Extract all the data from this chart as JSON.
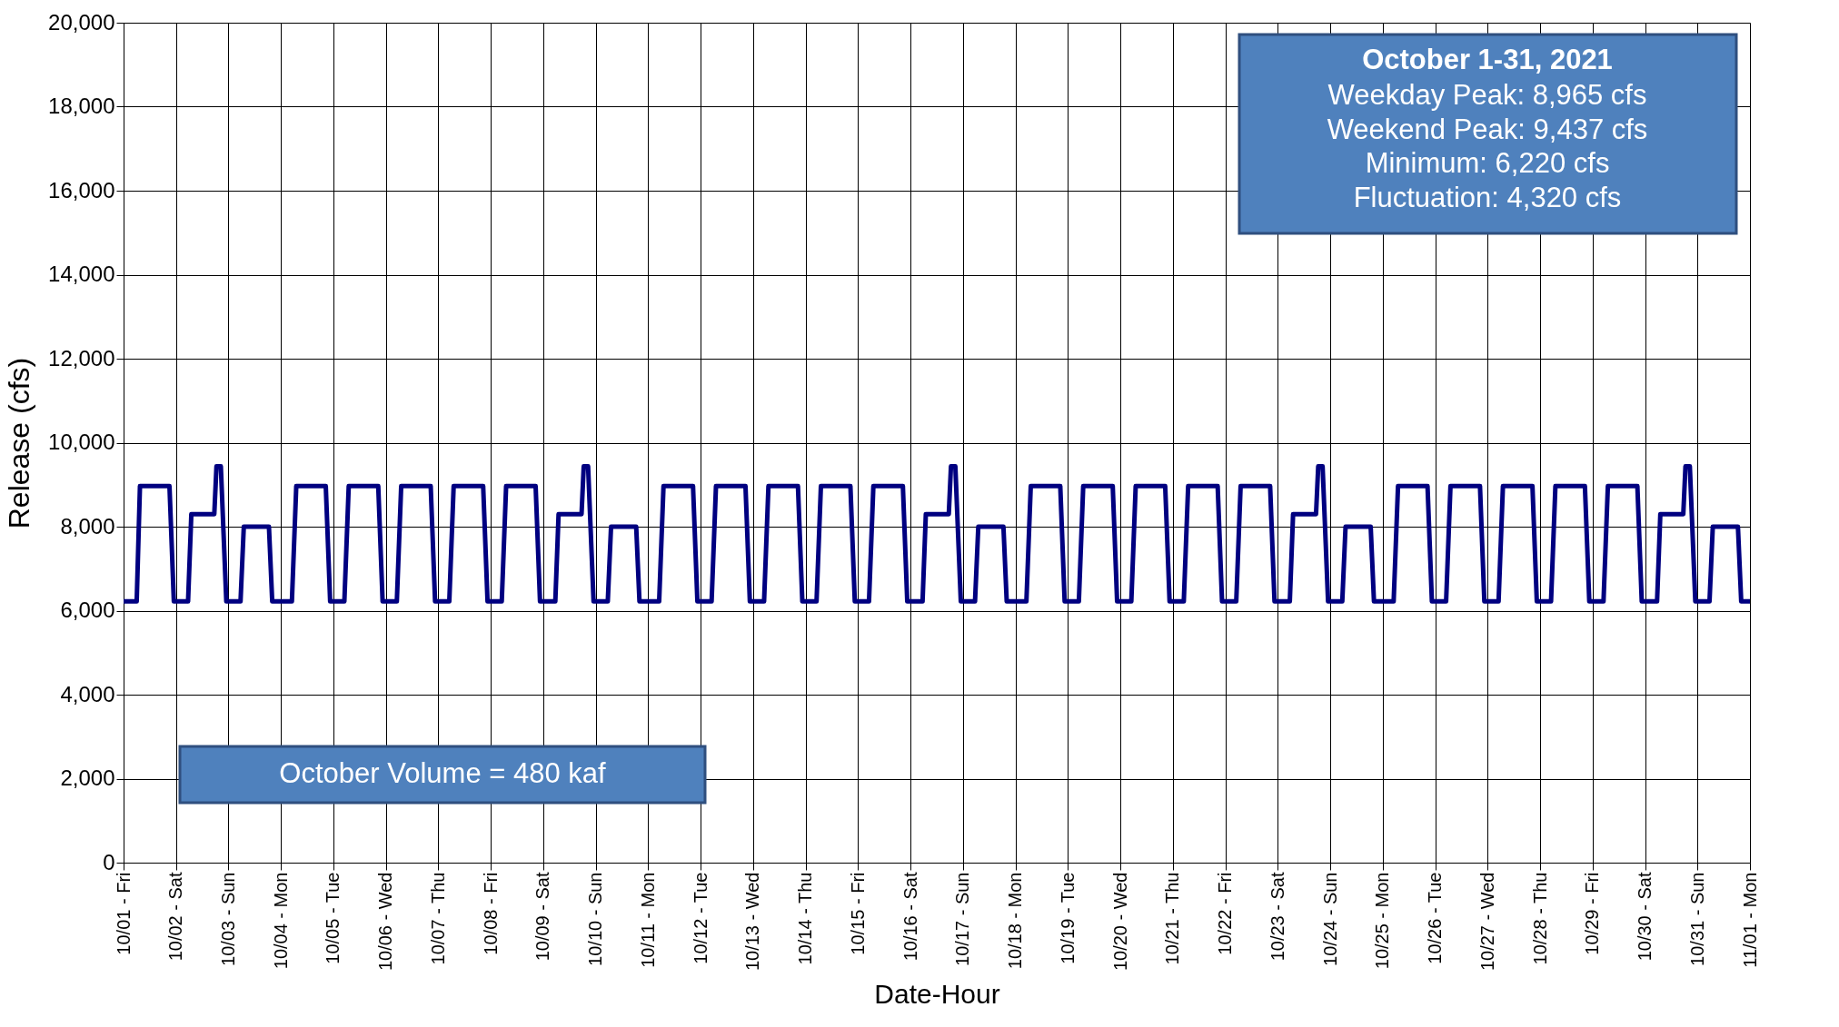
{
  "chart_data": {
    "type": "line",
    "xlabel": "Date-Hour",
    "ylabel": "Release (cfs)",
    "annotations": [
      "October 1-31, 2021",
      "Weekday Peak: 8,965 cfs",
      "Weekend Peak: 9,437 cfs",
      "Minimum: 6,220 cfs",
      "Fluctuation: 4,320 cfs",
      "October Volume = 480 kaf"
    ],
    "xlim": [
      "2021-10-01",
      "2021-11-01"
    ],
    "xticks": [
      {
        "value": "2021-10-01",
        "label": "10/01 - Fri"
      },
      {
        "value": "2021-10-02",
        "label": "10/02 - Sat"
      },
      {
        "value": "2021-10-03",
        "label": "10/03 - Sun"
      },
      {
        "value": "2021-10-04",
        "label": "10/04 - Mon"
      },
      {
        "value": "2021-10-05",
        "label": "10/05 - Tue"
      },
      {
        "value": "2021-10-06",
        "label": "10/06 - Wed"
      },
      {
        "value": "2021-10-07",
        "label": "10/07 - Thu"
      },
      {
        "value": "2021-10-08",
        "label": "10/08 - Fri"
      },
      {
        "value": "2021-10-09",
        "label": "10/09 - Sat"
      },
      {
        "value": "2021-10-10",
        "label": "10/10 - Sun"
      },
      {
        "value": "2021-10-11",
        "label": "10/11 - Mon"
      },
      {
        "value": "2021-10-12",
        "label": "10/12 - Tue"
      },
      {
        "value": "2021-10-13",
        "label": "10/13 - Wed"
      },
      {
        "value": "2021-10-14",
        "label": "10/14 - Thu"
      },
      {
        "value": "2021-10-15",
        "label": "10/15 - Fri"
      },
      {
        "value": "2021-10-16",
        "label": "10/16 - Sat"
      },
      {
        "value": "2021-10-17",
        "label": "10/17 - Sun"
      },
      {
        "value": "2021-10-18",
        "label": "10/18 - Mon"
      },
      {
        "value": "2021-10-19",
        "label": "10/19 - Tue"
      },
      {
        "value": "2021-10-20",
        "label": "10/20 - Wed"
      },
      {
        "value": "2021-10-21",
        "label": "10/21 - Thu"
      },
      {
        "value": "2021-10-22",
        "label": "10/22 - Fri"
      },
      {
        "value": "2021-10-23",
        "label": "10/23 - Sat"
      },
      {
        "value": "2021-10-24",
        "label": "10/24 - Sun"
      },
      {
        "value": "2021-10-25",
        "label": "10/25 - Mon"
      },
      {
        "value": "2021-10-26",
        "label": "10/26 - Tue"
      },
      {
        "value": "2021-10-27",
        "label": "10/27 - Wed"
      },
      {
        "value": "2021-10-28",
        "label": "10/28 - Thu"
      },
      {
        "value": "2021-10-29",
        "label": "10/29 - Fri"
      },
      {
        "value": "2021-10-30",
        "label": "10/30 - Sat"
      },
      {
        "value": "2021-10-31",
        "label": "10/31 - Sun"
      },
      {
        "value": "2021-11-01",
        "label": "11/01 - Mon"
      }
    ],
    "ylim": [
      0,
      20000
    ],
    "yticks": [
      {
        "value": 0,
        "label": "0"
      },
      {
        "value": 2000,
        "label": "2,000"
      },
      {
        "value": 4000,
        "label": "4,000"
      },
      {
        "value": 6000,
        "label": "6,000"
      },
      {
        "value": 8000,
        "label": "8,000"
      },
      {
        "value": 10000,
        "label": "10,000"
      },
      {
        "value": 12000,
        "label": "12,000"
      },
      {
        "value": 14000,
        "label": "14,000"
      },
      {
        "value": 16000,
        "label": "16,000"
      },
      {
        "value": 18000,
        "label": "18,000"
      },
      {
        "value": 20000,
        "label": "20,000"
      }
    ],
    "grid": true,
    "marker": "none",
    "line_style": "solid",
    "series": [
      {
        "color": "#000080",
        "x": [
          "2021-10-01T00:00",
          "2021-10-01T06:00",
          "2021-10-01T07:30",
          "2021-10-01T21:00",
          "2021-10-01T23:00",
          "2021-10-02T05:30",
          "2021-10-02T07:00",
          "2021-10-02T17:30",
          "2021-10-02T18:30",
          "2021-10-02T20:30",
          "2021-10-02T23:00",
          "2021-10-03T05:30",
          "2021-10-03T07:00",
          "2021-10-03T18:30",
          "2021-10-03T20:00",
          "2021-10-04T05:00",
          "2021-10-04T07:00",
          "2021-10-04T20:30",
          "2021-10-04T22:30",
          "2021-10-05T05:00",
          "2021-10-05T07:00",
          "2021-10-05T20:30",
          "2021-10-05T22:30",
          "2021-10-06T05:00",
          "2021-10-06T07:00",
          "2021-10-06T20:30",
          "2021-10-06T22:30",
          "2021-10-07T05:00",
          "2021-10-07T07:00",
          "2021-10-07T20:30",
          "2021-10-07T22:30",
          "2021-10-08T05:00",
          "2021-10-08T07:00",
          "2021-10-08T20:30",
          "2021-10-08T22:30",
          "2021-10-09T05:30",
          "2021-10-09T07:00",
          "2021-10-09T17:30",
          "2021-10-09T18:30",
          "2021-10-09T20:30",
          "2021-10-09T23:00",
          "2021-10-10T05:30",
          "2021-10-10T07:00",
          "2021-10-10T18:30",
          "2021-10-10T20:00",
          "2021-10-11T05:00",
          "2021-10-11T07:00",
          "2021-10-11T20:30",
          "2021-10-11T22:30",
          "2021-10-12T05:00",
          "2021-10-12T07:00",
          "2021-10-12T20:30",
          "2021-10-12T22:30",
          "2021-10-13T05:00",
          "2021-10-13T07:00",
          "2021-10-13T20:30",
          "2021-10-13T22:30",
          "2021-10-14T05:00",
          "2021-10-14T07:00",
          "2021-10-14T20:30",
          "2021-10-14T22:30",
          "2021-10-15T05:00",
          "2021-10-15T07:00",
          "2021-10-15T20:30",
          "2021-10-15T22:30",
          "2021-10-16T05:30",
          "2021-10-16T07:00",
          "2021-10-16T17:30",
          "2021-10-16T18:30",
          "2021-10-16T20:30",
          "2021-10-16T23:00",
          "2021-10-17T05:30",
          "2021-10-17T07:00",
          "2021-10-17T18:30",
          "2021-10-17T20:00",
          "2021-10-18T05:00",
          "2021-10-18T07:00",
          "2021-10-18T20:30",
          "2021-10-18T22:30",
          "2021-10-19T05:00",
          "2021-10-19T07:00",
          "2021-10-19T20:30",
          "2021-10-19T22:30",
          "2021-10-20T05:00",
          "2021-10-20T07:00",
          "2021-10-20T20:30",
          "2021-10-20T22:30",
          "2021-10-21T05:00",
          "2021-10-21T07:00",
          "2021-10-21T20:30",
          "2021-10-21T22:30",
          "2021-10-22T05:00",
          "2021-10-22T07:00",
          "2021-10-22T20:30",
          "2021-10-22T22:30",
          "2021-10-23T05:30",
          "2021-10-23T07:00",
          "2021-10-23T17:30",
          "2021-10-23T18:30",
          "2021-10-23T20:30",
          "2021-10-23T23:00",
          "2021-10-24T05:30",
          "2021-10-24T07:00",
          "2021-10-24T18:30",
          "2021-10-24T20:00",
          "2021-10-25T05:00",
          "2021-10-25T07:00",
          "2021-10-25T20:30",
          "2021-10-25T22:30",
          "2021-10-26T05:00",
          "2021-10-26T07:00",
          "2021-10-26T20:30",
          "2021-10-26T22:30",
          "2021-10-27T05:00",
          "2021-10-27T07:00",
          "2021-10-27T20:30",
          "2021-10-27T22:30",
          "2021-10-28T05:00",
          "2021-10-28T07:00",
          "2021-10-28T20:30",
          "2021-10-28T22:30",
          "2021-10-29T05:00",
          "2021-10-29T07:00",
          "2021-10-29T20:30",
          "2021-10-29T22:30",
          "2021-10-30T05:30",
          "2021-10-30T07:00",
          "2021-10-30T17:30",
          "2021-10-30T18:30",
          "2021-10-30T20:30",
          "2021-10-30T23:00",
          "2021-10-31T05:30",
          "2021-10-31T07:00",
          "2021-10-31T18:30",
          "2021-10-31T20:00",
          "2021-11-01T00:00"
        ],
        "values": [
          6220,
          6220,
          8965,
          8965,
          6220,
          6220,
          8300,
          8300,
          9437,
          9437,
          6220,
          6220,
          8000,
          8000,
          6220,
          6220,
          8965,
          8965,
          6220,
          6220,
          8965,
          8965,
          6220,
          6220,
          8965,
          8965,
          6220,
          6220,
          8965,
          8965,
          6220,
          6220,
          8965,
          8965,
          6220,
          6220,
          8300,
          8300,
          9437,
          9437,
          6220,
          6220,
          8000,
          8000,
          6220,
          6220,
          8965,
          8965,
          6220,
          6220,
          8965,
          8965,
          6220,
          6220,
          8965,
          8965,
          6220,
          6220,
          8965,
          8965,
          6220,
          6220,
          8965,
          8965,
          6220,
          6220,
          8300,
          8300,
          9437,
          9437,
          6220,
          6220,
          8000,
          8000,
          6220,
          6220,
          8965,
          8965,
          6220,
          6220,
          8965,
          8965,
          6220,
          6220,
          8965,
          8965,
          6220,
          6220,
          8965,
          8965,
          6220,
          6220,
          8965,
          8965,
          6220,
          6220,
          8300,
          8300,
          9437,
          9437,
          6220,
          6220,
          8000,
          8000,
          6220,
          6220,
          8965,
          8965,
          6220,
          6220,
          8965,
          8965,
          6220,
          6220,
          8965,
          8965,
          6220,
          6220,
          8965,
          8965,
          6220,
          6220,
          8965,
          8965,
          6220,
          6220,
          8300,
          8300,
          9437,
          9437,
          6220,
          6220,
          8000,
          8000,
          6220,
          6220
        ]
      }
    ]
  }
}
